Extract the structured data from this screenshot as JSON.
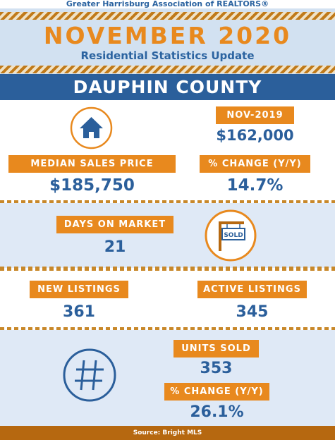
{
  "header": {
    "org_title": "Greater Harrisburg Association of REALTORS®",
    "month_title": "NOVEMBER 2020",
    "subtitle": "Residential Statistics Update"
  },
  "county": {
    "name": "DAUPHIN COUNTY"
  },
  "stats": {
    "median_sales_price": {
      "label": "MEDIAN SALES PRICE",
      "value": "$185,750"
    },
    "prior_year": {
      "label": "NOV-2019",
      "value": "$162,000"
    },
    "price_change": {
      "label": "% CHANGE (Y/Y)",
      "value": "14.7%"
    },
    "days_on_market": {
      "label": "DAYS ON MARKET",
      "value": "21"
    },
    "new_listings": {
      "label": "NEW LISTINGS",
      "value": "361"
    },
    "active_listings": {
      "label": "ACTIVE LISTINGS",
      "value": "345"
    },
    "units_sold": {
      "label": "UNITS SOLD",
      "value": "353"
    },
    "units_change": {
      "label": "% CHANGE (Y/Y)",
      "value": "26.1%"
    }
  },
  "icons": {
    "house": "house-icon",
    "sold_sign": "sold-sign-icon",
    "sold_sign_text": "SOLD",
    "hashtag": "hashtag-icon"
  },
  "footer": {
    "source": "Source: Bright MLS"
  },
  "colors": {
    "orange": "#e8891e",
    "blue": "#2b5f9b",
    "light_blue": "#dfe9f6",
    "brown": "#b66810"
  }
}
